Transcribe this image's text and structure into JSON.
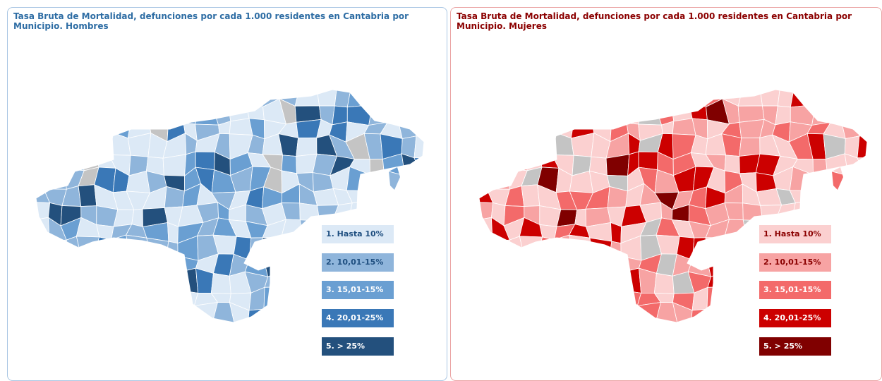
{
  "panels": [
    {
      "title": "Tasa Bruta de Mortalidad, defunciones por cada 1.000 residentes en Cantabria por Municipio. Hombres",
      "title_color": "#2e6da4",
      "border_color": "#a9c6e3",
      "legend": [
        {
          "label": "1. Hasta 10%",
          "color": "#dce9f6"
        },
        {
          "label": "2. 10,01-15%",
          "color": "#8fb5db"
        },
        {
          "label": "3. 15,01-15%",
          "color": "#6a9fd2"
        },
        {
          "label": "4. 20,01-25%",
          "color": "#3a78b7"
        },
        {
          "label": "5. > 25%",
          "color": "#23507d"
        }
      ]
    },
    {
      "title": "Tasa Bruta de Mortalidad, defunciones por cada 1.000 residentes en Cantabria por Municipio. Mujeres",
      "title_color": "#8b0000",
      "border_color": "#eaa3a3",
      "legend": [
        {
          "label": "1. Hasta 10%",
          "color": "#fbd0d0"
        },
        {
          "label": "2. 10,01-15%",
          "color": "#f7a3a3"
        },
        {
          "label": "3. 15,01-15%",
          "color": "#f36a6a"
        },
        {
          "label": "4. 20,01-25%",
          "color": "#cc0000"
        },
        {
          "label": "5. > 25%",
          "color": "#800000"
        }
      ]
    }
  ]
}
